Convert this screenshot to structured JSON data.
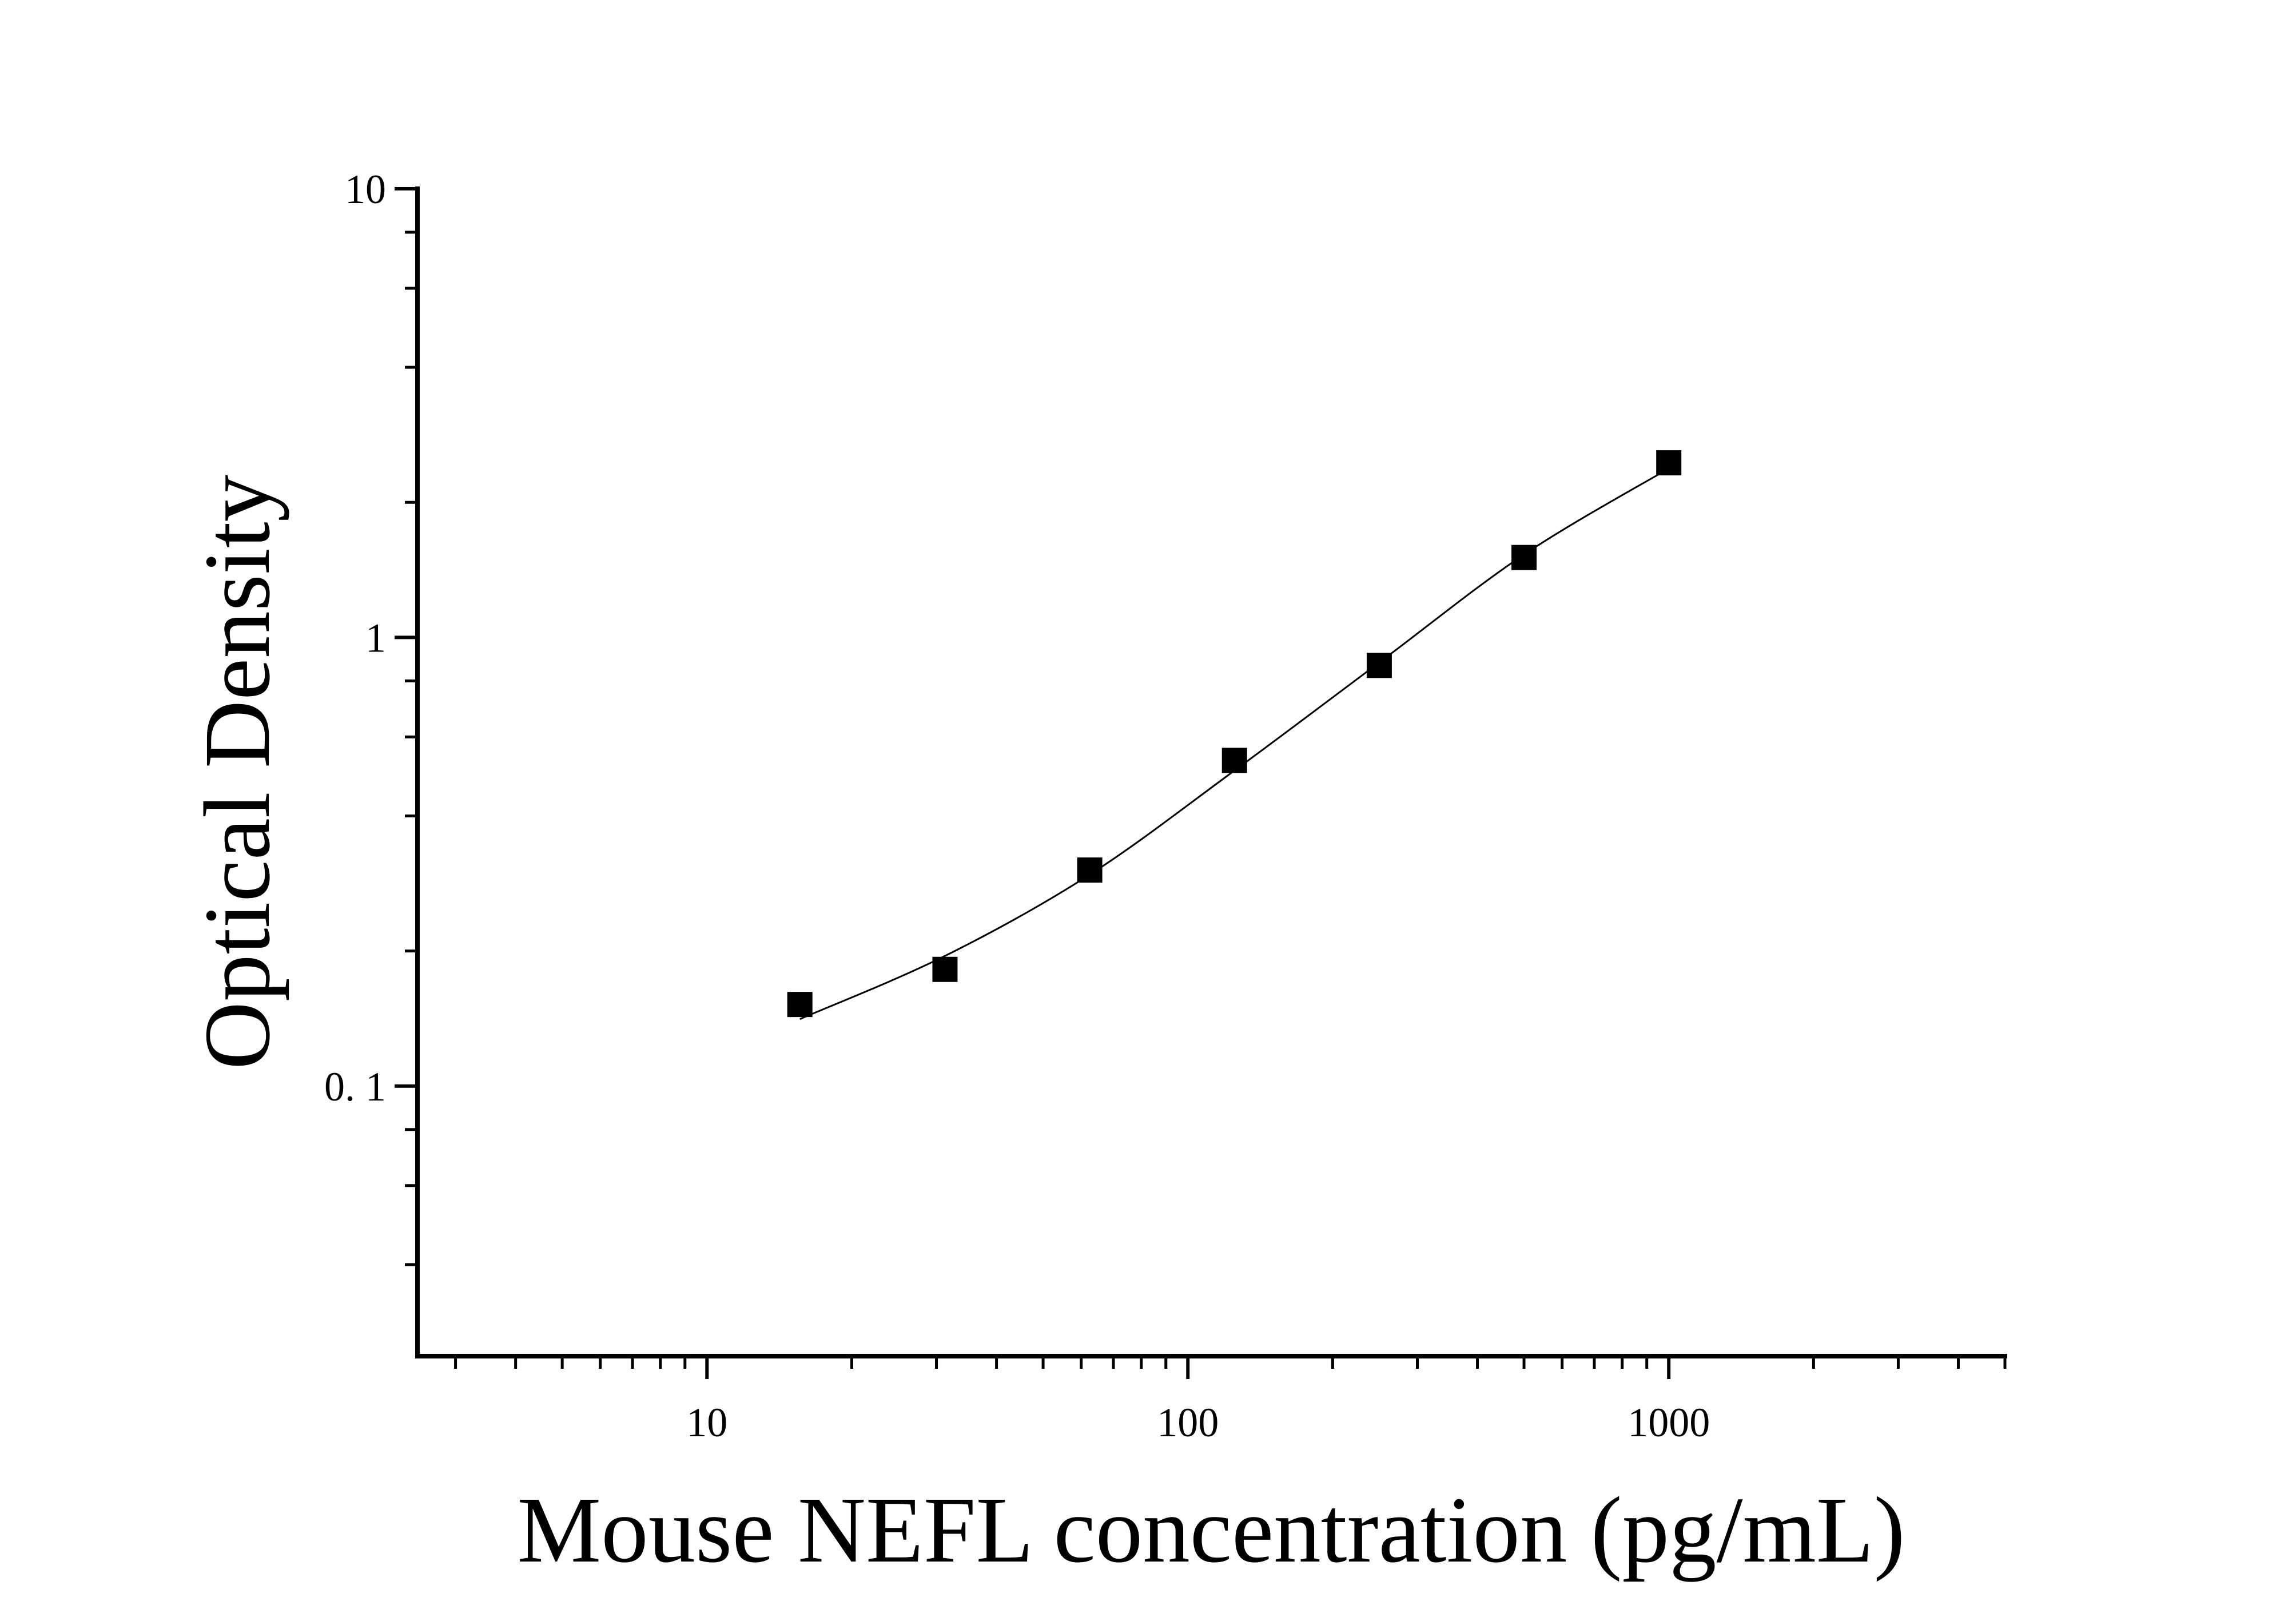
{
  "chart_data": {
    "type": "scatter",
    "x_label": "Mouse NEFL concentration (pg/mL)",
    "y_label": "Optical Density",
    "x": [
      15.6,
      31.25,
      62.5,
      125,
      250,
      500,
      1000
    ],
    "series": [
      {
        "values": [
          0.152,
          0.182,
          0.303,
          0.532,
          0.866,
          1.507,
          2.45
        ],
        "color": "#000000",
        "marker": "square"
      }
    ],
    "fit": {
      "values": [
        0.141,
        0.195,
        0.296,
        0.505,
        0.879,
        1.53,
        2.38
      ],
      "color": "#000000"
    },
    "xscale": "log",
    "yscale": "log",
    "xlim": [
      2.5,
      5000
    ],
    "ylim": [
      0.025,
      10
    ],
    "xticks": [
      10,
      100,
      1000
    ],
    "xminorticks": [
      3,
      4,
      5,
      6,
      7,
      8,
      9,
      20,
      30,
      40,
      50,
      60,
      70,
      80,
      90,
      200,
      300,
      400,
      500,
      600,
      700,
      800,
      900,
      2000,
      3000,
      4000,
      5000
    ],
    "yticks": [
      {
        "value": 0.1,
        "label": "0. 1"
      },
      1,
      10
    ],
    "yminorticks": [
      0.04,
      0.06,
      0.08,
      0.2,
      0.4,
      0.6,
      0.8,
      2,
      4,
      6,
      8
    ]
  }
}
